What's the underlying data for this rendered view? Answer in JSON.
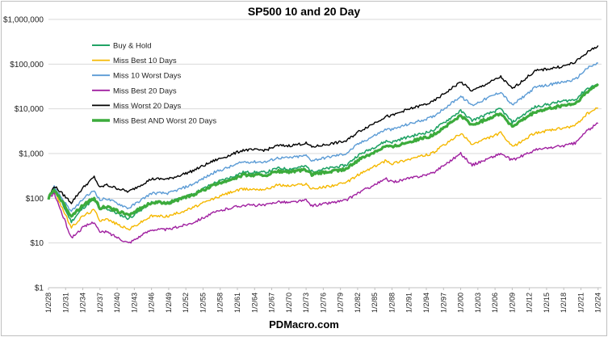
{
  "chart_data": {
    "type": "line",
    "title": "SP500 10 and 20 Day",
    "footer": "PDMacro.com",
    "y_scale": "log",
    "ylim": [
      1,
      1000000
    ],
    "y_tick_values": [
      1,
      10,
      100,
      1000,
      10000,
      100000,
      1000000
    ],
    "y_tick_labels": [
      "$1",
      "$10",
      "$100",
      "$1,000",
      "$10,000",
      "$100,000",
      "$1,000,000"
    ],
    "x_tick_labels": [
      "1/2/28",
      "1/2/31",
      "1/2/34",
      "1/2/37",
      "1/2/40",
      "1/2/43",
      "1/2/46",
      "1/2/49",
      "1/2/52",
      "1/2/55",
      "1/2/58",
      "1/2/61",
      "1/2/64",
      "1/2/67",
      "1/2/70",
      "1/2/73",
      "1/2/76",
      "1/2/79",
      "1/2/82",
      "1/2/85",
      "1/2/88",
      "1/2/91",
      "1/2/94",
      "1/2/97",
      "1/2/00",
      "1/2/03",
      "1/2/06",
      "1/2/09",
      "1/2/12",
      "1/2/15",
      "1/2/18",
      "1/2/21",
      "1/2/24"
    ],
    "grid": true,
    "legend_position": "top-left",
    "x_years": [
      1928,
      1929,
      1932,
      1934,
      1936,
      1937,
      1938,
      1942,
      1946,
      1949,
      1953,
      1957,
      1960,
      1962,
      1966,
      1968,
      1970,
      1973,
      1974,
      1980,
      1982,
      1987,
      1988,
      1990,
      1995,
      2000,
      2002,
      2007,
      2009,
      2013,
      2018,
      2020,
      2022,
      2024
    ],
    "series": [
      {
        "name": "Buy & Hold",
        "color": "#21a366",
        "width": 1.6,
        "values": [
          100,
          170,
          30,
          60,
          95,
          55,
          60,
          35,
          80,
          80,
          120,
          220,
          300,
          380,
          380,
          470,
          450,
          520,
          400,
          550,
          900,
          1900,
          1800,
          2200,
          3200,
          9000,
          5500,
          10000,
          5000,
          11000,
          15000,
          16000,
          28000,
          36000
        ]
      },
      {
        "name": "Miss Best 10 Days",
        "color": "#f5b800",
        "width": 1.4,
        "values": [
          100,
          150,
          22,
          40,
          55,
          32,
          35,
          20,
          40,
          40,
          60,
          100,
          140,
          160,
          160,
          200,
          190,
          210,
          160,
          220,
          330,
          700,
          600,
          700,
          1000,
          2800,
          1600,
          2900,
          1400,
          2900,
          3700,
          4200,
          7600,
          10500
        ]
      },
      {
        "name": "Miss 10 Worst Days",
        "color": "#5b9bd5",
        "width": 1.4,
        "values": [
          100,
          180,
          50,
          95,
          150,
          90,
          100,
          60,
          130,
          130,
          200,
          380,
          520,
          650,
          650,
          800,
          800,
          900,
          700,
          1000,
          1600,
          3500,
          3400,
          4200,
          6500,
          19000,
          12000,
          24000,
          12000,
          30000,
          40000,
          45000,
          80000,
          105000
        ]
      },
      {
        "name": "Miss Best 20 Days",
        "color": "#a020a0",
        "width": 1.4,
        "values": [
          100,
          130,
          13,
          22,
          30,
          17,
          18,
          10,
          20,
          20,
          28,
          48,
          62,
          70,
          70,
          85,
          80,
          90,
          68,
          90,
          130,
          270,
          230,
          260,
          360,
          1000,
          550,
          1000,
          700,
          1200,
          1500,
          1700,
          3200,
          4700
        ]
      },
      {
        "name": "Miss Worst 20 Days",
        "color": "#000000",
        "width": 1.4,
        "values": [
          100,
          190,
          80,
          170,
          300,
          170,
          200,
          140,
          270,
          270,
          400,
          700,
          950,
          1200,
          1200,
          1500,
          1500,
          1700,
          1400,
          1900,
          3000,
          6800,
          7000,
          9000,
          14000,
          40000,
          25000,
          52000,
          28000,
          70000,
          90000,
          110000,
          180000,
          260000
        ]
      },
      {
        "name": "Miss Best AND Worst 20 Days",
        "color": "#3cab3c",
        "width": 3.2,
        "values": [
          100,
          160,
          40,
          70,
          100,
          60,
          65,
          42,
          80,
          80,
          115,
          200,
          270,
          330,
          330,
          400,
          390,
          430,
          340,
          450,
          700,
          1500,
          1400,
          1700,
          2500,
          7000,
          4300,
          8000,
          4000,
          8500,
          12000,
          13000,
          23000,
          36000
        ]
      }
    ]
  }
}
